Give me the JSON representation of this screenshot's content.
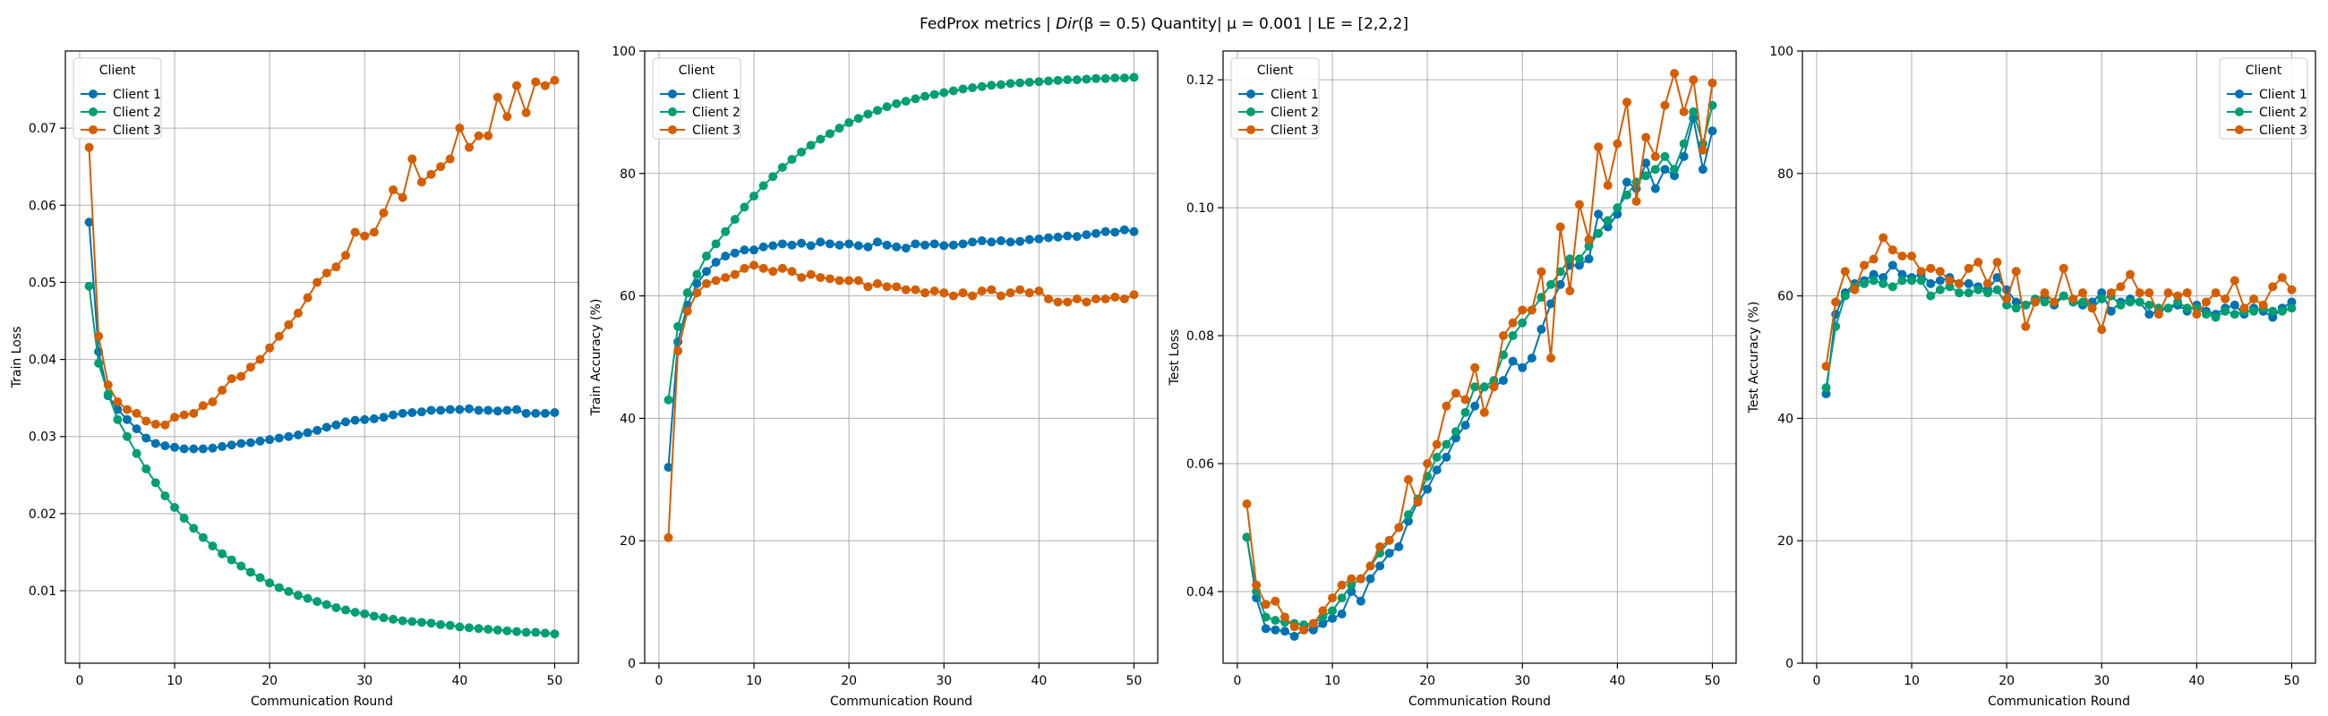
{
  "figure": {
    "title_prefix": "FedProx metrics | ",
    "title_math": "Dir",
    "title_math_args": "(β = 0.5)",
    "title_suffix": " Quantity| μ = 0.001 | LE = [2,2,2]"
  },
  "legend": {
    "title": "Client",
    "series_names": [
      "Client 1",
      "Client 2",
      "Client 3"
    ]
  },
  "colors": {
    "client_1": "#0072B2",
    "client_2": "#009E73",
    "client_3": "#D55E00",
    "grid": "#b0b0b0",
    "axes": "#000000"
  },
  "chart_data": [
    {
      "type": "line",
      "ylabel": "Train Loss",
      "xlabel": "Communication Round",
      "xlim": [
        -1.5,
        52.5
      ],
      "ylim": [
        0.0006,
        0.08
      ],
      "xticks": [
        0,
        10,
        20,
        30,
        40,
        50
      ],
      "yticks": [
        0.01,
        0.02,
        0.03,
        0.04,
        0.05,
        0.06,
        0.07
      ],
      "ytick_labels": [
        "0.01",
        "0.02",
        "0.03",
        "0.04",
        "0.05",
        "0.06",
        "0.07"
      ],
      "legend_position": "top-left",
      "grid": true,
      "x": [
        1,
        2,
        3,
        4,
        5,
        6,
        7,
        8,
        9,
        10,
        11,
        12,
        13,
        14,
        15,
        16,
        17,
        18,
        19,
        20,
        21,
        22,
        23,
        24,
        25,
        26,
        27,
        28,
        29,
        30,
        31,
        32,
        33,
        34,
        35,
        36,
        37,
        38,
        39,
        40,
        41,
        42,
        43,
        44,
        45,
        46,
        47,
        48,
        49,
        50
      ],
      "series": [
        {
          "name": "Client 1",
          "values": [
            0.0578,
            0.041,
            0.0353,
            0.0335,
            0.0322,
            0.031,
            0.0298,
            0.0291,
            0.0288,
            0.0286,
            0.0284,
            0.0284,
            0.0284,
            0.0285,
            0.0287,
            0.0289,
            0.0291,
            0.0292,
            0.0294,
            0.0296,
            0.0298,
            0.03,
            0.0302,
            0.0305,
            0.0308,
            0.0312,
            0.0315,
            0.0319,
            0.0321,
            0.0322,
            0.0323,
            0.0325,
            0.0328,
            0.033,
            0.0331,
            0.0332,
            0.0334,
            0.0334,
            0.0335,
            0.0335,
            0.0336,
            0.0334,
            0.0334,
            0.0333,
            0.0334,
            0.0335,
            0.033,
            0.033,
            0.033,
            0.0331
          ]
        },
        {
          "name": "Client 2",
          "values": [
            0.0495,
            0.0395,
            0.0355,
            0.0322,
            0.03,
            0.0278,
            0.0258,
            0.024,
            0.0223,
            0.0208,
            0.0194,
            0.0181,
            0.0169,
            0.0158,
            0.0148,
            0.014,
            0.0132,
            0.0124,
            0.0117,
            0.011,
            0.0104,
            0.0099,
            0.0094,
            0.009,
            0.0086,
            0.0082,
            0.0078,
            0.0075,
            0.0072,
            0.007,
            0.0067,
            0.0065,
            0.0063,
            0.0061,
            0.006,
            0.0059,
            0.0058,
            0.0056,
            0.0055,
            0.0053,
            0.0052,
            0.0051,
            0.005,
            0.0049,
            0.0048,
            0.0047,
            0.0046,
            0.0046,
            0.0045,
            0.0044
          ]
        },
        {
          "name": "Client 3",
          "values": [
            0.0675,
            0.043,
            0.0367,
            0.0345,
            0.0335,
            0.033,
            0.032,
            0.0316,
            0.0315,
            0.0325,
            0.0328,
            0.033,
            0.034,
            0.0345,
            0.036,
            0.0375,
            0.0378,
            0.039,
            0.04,
            0.0415,
            0.043,
            0.0445,
            0.046,
            0.048,
            0.05,
            0.0512,
            0.052,
            0.0535,
            0.0565,
            0.056,
            0.0565,
            0.059,
            0.062,
            0.061,
            0.066,
            0.063,
            0.064,
            0.065,
            0.066,
            0.07,
            0.0675,
            0.069,
            0.069,
            0.074,
            0.0715,
            0.0755,
            0.072,
            0.076,
            0.0755,
            0.0762
          ]
        }
      ]
    },
    {
      "type": "line",
      "ylabel": "Train Accuracy (%)",
      "xlabel": "Communication Round",
      "xlim": [
        -1.5,
        52.5
      ],
      "ylim": [
        0,
        100
      ],
      "xticks": [
        0,
        10,
        20,
        30,
        40,
        50
      ],
      "yticks": [
        0,
        20,
        40,
        60,
        80,
        100
      ],
      "ytick_labels": [
        "0",
        "20",
        "40",
        "60",
        "80",
        "100"
      ],
      "legend_position": "top-left",
      "grid": true,
      "x": [
        1,
        2,
        3,
        4,
        5,
        6,
        7,
        8,
        9,
        10,
        11,
        12,
        13,
        14,
        15,
        16,
        17,
        18,
        19,
        20,
        21,
        22,
        23,
        24,
        25,
        26,
        27,
        28,
        29,
        30,
        31,
        32,
        33,
        34,
        35,
        36,
        37,
        38,
        39,
        40,
        41,
        42,
        43,
        44,
        45,
        46,
        47,
        48,
        49,
        50
      ],
      "series": [
        {
          "name": "Client 1",
          "values": [
            32.0,
            52.5,
            58.5,
            62.0,
            64.0,
            65.5,
            66.5,
            67.0,
            67.5,
            67.5,
            68.0,
            68.2,
            68.5,
            68.3,
            68.6,
            68.2,
            68.8,
            68.5,
            68.3,
            68.5,
            68.2,
            68.0,
            68.8,
            68.3,
            68.0,
            67.8,
            68.5,
            68.3,
            68.5,
            68.2,
            68.3,
            68.5,
            68.8,
            69.0,
            68.8,
            69.0,
            68.8,
            68.9,
            69.2,
            69.3,
            69.5,
            69.6,
            69.8,
            69.7,
            70.0,
            70.2,
            70.5,
            70.4,
            70.8,
            70.5
          ]
        },
        {
          "name": "Client 2",
          "values": [
            43.0,
            55.0,
            60.5,
            63.5,
            66.5,
            68.5,
            70.5,
            72.5,
            74.5,
            76.3,
            78.0,
            79.5,
            81.0,
            82.3,
            83.5,
            84.6,
            85.6,
            86.5,
            87.4,
            88.3,
            89.0,
            89.7,
            90.3,
            90.9,
            91.4,
            91.8,
            92.2,
            92.6,
            92.9,
            93.2,
            93.5,
            93.8,
            94.0,
            94.2,
            94.4,
            94.5,
            94.7,
            94.8,
            94.9,
            95.0,
            95.1,
            95.2,
            95.3,
            95.3,
            95.4,
            95.5,
            95.5,
            95.6,
            95.6,
            95.7
          ]
        },
        {
          "name": "Client 3",
          "values": [
            20.5,
            51.0,
            57.5,
            60.5,
            62.0,
            62.5,
            63.0,
            63.5,
            64.5,
            65.0,
            64.5,
            64.0,
            64.5,
            64.0,
            63.0,
            63.5,
            63.0,
            62.8,
            62.5,
            62.5,
            62.5,
            61.5,
            62.0,
            61.5,
            61.5,
            61.0,
            61.0,
            60.5,
            60.8,
            60.5,
            60.0,
            60.5,
            60.0,
            60.8,
            61.0,
            60.0,
            60.5,
            61.0,
            60.5,
            60.8,
            59.5,
            59.0,
            59.0,
            59.5,
            59.0,
            59.5,
            59.5,
            59.8,
            59.5,
            60.2
          ]
        }
      ]
    },
    {
      "type": "line",
      "ylabel": "Test Loss",
      "xlabel": "Communication Round",
      "xlim": [
        -1.5,
        52.5
      ],
      "ylim": [
        0.0288,
        0.1245
      ],
      "xticks": [
        0,
        10,
        20,
        30,
        40,
        50
      ],
      "yticks": [
        0.04,
        0.06,
        0.08,
        0.1,
        0.12
      ],
      "ytick_labels": [
        "0.04",
        "0.06",
        "0.08",
        "0.10",
        "0.12"
      ],
      "legend_position": "top-left",
      "grid": true,
      "x": [
        1,
        2,
        3,
        4,
        5,
        6,
        7,
        8,
        9,
        10,
        11,
        12,
        13,
        14,
        15,
        16,
        17,
        18,
        19,
        20,
        21,
        22,
        23,
        24,
        25,
        26,
        27,
        28,
        29,
        30,
        31,
        32,
        33,
        34,
        35,
        36,
        37,
        38,
        39,
        40,
        41,
        42,
        43,
        44,
        45,
        46,
        47,
        48,
        49,
        50
      ],
      "series": [
        {
          "name": "Client 1",
          "values": [
            0.0485,
            0.039,
            0.0342,
            0.034,
            0.0338,
            0.033,
            0.034,
            0.034,
            0.035,
            0.0358,
            0.0365,
            0.04,
            0.0385,
            0.042,
            0.044,
            0.046,
            0.047,
            0.051,
            0.054,
            0.056,
            0.059,
            0.061,
            0.064,
            0.066,
            0.069,
            0.072,
            0.072,
            0.073,
            0.076,
            0.075,
            0.0765,
            0.081,
            0.085,
            0.088,
            0.091,
            0.091,
            0.092,
            0.099,
            0.097,
            0.099,
            0.104,
            0.103,
            0.107,
            0.103,
            0.106,
            0.105,
            0.108,
            0.114,
            0.106,
            0.112
          ]
        },
        {
          "name": "Client 2",
          "values": [
            0.0485,
            0.04,
            0.036,
            0.0355,
            0.0352,
            0.035,
            0.0348,
            0.035,
            0.036,
            0.037,
            0.039,
            0.041,
            0.042,
            0.044,
            0.046,
            0.048,
            0.05,
            0.052,
            0.0545,
            0.058,
            0.061,
            0.063,
            0.065,
            0.068,
            0.072,
            0.072,
            0.073,
            0.077,
            0.08,
            0.082,
            0.084,
            0.086,
            0.088,
            0.09,
            0.092,
            0.092,
            0.094,
            0.096,
            0.098,
            0.1,
            0.102,
            0.104,
            0.105,
            0.106,
            0.108,
            0.106,
            0.11,
            0.115,
            0.11,
            0.116
          ]
        },
        {
          "name": "Client 3",
          "values": [
            0.0537,
            0.041,
            0.038,
            0.0385,
            0.036,
            0.0345,
            0.034,
            0.035,
            0.037,
            0.039,
            0.041,
            0.042,
            0.042,
            0.044,
            0.047,
            0.048,
            0.05,
            0.0575,
            0.054,
            0.06,
            0.063,
            0.069,
            0.071,
            0.07,
            0.075,
            0.068,
            0.072,
            0.08,
            0.082,
            0.084,
            0.084,
            0.09,
            0.0765,
            0.097,
            0.087,
            0.1005,
            0.095,
            0.1095,
            0.1035,
            0.11,
            0.1165,
            0.101,
            0.111,
            0.108,
            0.116,
            0.121,
            0.115,
            0.12,
            0.109,
            0.1195
          ]
        }
      ]
    },
    {
      "type": "line",
      "ylabel": "Test Accuracy (%)",
      "xlabel": "Communication Round",
      "xlim": [
        -1.5,
        52.5
      ],
      "ylim": [
        0,
        100
      ],
      "xticks": [
        0,
        10,
        20,
        30,
        40,
        50
      ],
      "yticks": [
        0,
        20,
        40,
        60,
        80,
        100
      ],
      "ytick_labels": [
        "0",
        "20",
        "40",
        "60",
        "80",
        "100"
      ],
      "legend_position": "top-right",
      "grid": true,
      "x": [
        1,
        2,
        3,
        4,
        5,
        6,
        7,
        8,
        9,
        10,
        11,
        12,
        13,
        14,
        15,
        16,
        17,
        18,
        19,
        20,
        21,
        22,
        23,
        24,
        25,
        26,
        27,
        28,
        29,
        30,
        31,
        32,
        33,
        34,
        35,
        36,
        37,
        38,
        39,
        40,
        41,
        42,
        43,
        44,
        45,
        46,
        47,
        48,
        49,
        50
      ],
      "series": [
        {
          "name": "Client 1",
          "values": [
            44.0,
            57.0,
            60.5,
            62.0,
            62.5,
            63.5,
            63.0,
            65.0,
            63.5,
            63.0,
            63.5,
            62.0,
            62.5,
            63.0,
            62.0,
            62.0,
            61.5,
            61.0,
            63.0,
            61.0,
            59.0,
            58.5,
            59.0,
            59.5,
            58.5,
            60.0,
            59.0,
            58.5,
            59.0,
            60.5,
            57.5,
            59.0,
            59.5,
            59.0,
            57.0,
            57.5,
            58.0,
            58.5,
            57.5,
            58.5,
            57.5,
            57.0,
            58.0,
            58.5,
            57.0,
            58.0,
            57.5,
            56.5,
            58.0,
            59.0
          ]
        },
        {
          "name": "Client 2",
          "values": [
            45.0,
            55.0,
            60.0,
            61.5,
            62.0,
            62.5,
            62.0,
            61.5,
            62.5,
            62.5,
            62.5,
            60.0,
            61.0,
            61.5,
            60.5,
            60.5,
            61.0,
            60.5,
            61.0,
            58.5,
            58.0,
            58.5,
            59.5,
            59.0,
            59.0,
            60.0,
            59.0,
            59.0,
            58.0,
            59.5,
            60.0,
            58.5,
            59.0,
            59.0,
            58.5,
            58.0,
            58.0,
            59.0,
            58.0,
            58.0,
            57.0,
            56.5,
            57.5,
            57.0,
            57.5,
            57.5,
            58.0,
            57.5,
            57.5,
            58.0
          ]
        },
        {
          "name": "Client 3",
          "values": [
            48.5,
            59.0,
            64.0,
            61.0,
            65.0,
            66.0,
            69.5,
            67.5,
            66.5,
            66.5,
            64.0,
            64.5,
            64.0,
            62.5,
            62.0,
            64.5,
            65.5,
            62.0,
            65.5,
            59.5,
            64.0,
            55.0,
            59.0,
            60.5,
            59.0,
            64.5,
            59.5,
            60.5,
            58.0,
            54.5,
            60.5,
            61.5,
            63.5,
            60.5,
            60.5,
            57.0,
            60.5,
            60.0,
            60.5,
            57.0,
            59.0,
            60.5,
            59.5,
            62.5,
            58.0,
            59.5,
            58.5,
            61.5,
            63.0,
            61.0
          ]
        }
      ]
    }
  ]
}
